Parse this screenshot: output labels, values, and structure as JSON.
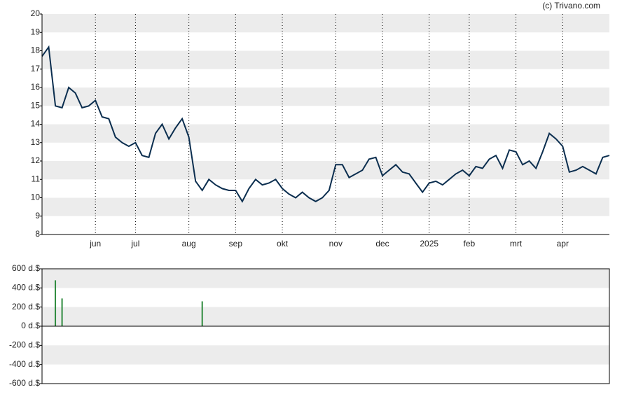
{
  "credit": "(c) Trivano.com",
  "chart_data": [
    {
      "type": "line",
      "color": "#0b2e4f",
      "grid": true,
      "ylim": [
        8,
        20
      ],
      "yticks": [
        8,
        9,
        10,
        11,
        12,
        13,
        14,
        15,
        16,
        17,
        18,
        19,
        20
      ],
      "categories": [
        null,
        null,
        null,
        null,
        null,
        null,
        null,
        null,
        "jun",
        null,
        null,
        null,
        null,
        null,
        "jul",
        null,
        null,
        null,
        null,
        null,
        null,
        null,
        "aug",
        null,
        null,
        null,
        null,
        null,
        null,
        "sep",
        null,
        null,
        null,
        null,
        null,
        null,
        "okt",
        null,
        null,
        null,
        null,
        null,
        null,
        null,
        "nov",
        null,
        null,
        null,
        null,
        null,
        null,
        "dec",
        null,
        null,
        null,
        null,
        null,
        null,
        "2025",
        null,
        null,
        null,
        null,
        null,
        "feb",
        null,
        null,
        null,
        null,
        null,
        null,
        "mrt",
        null,
        null,
        null,
        null,
        null,
        null,
        "apr",
        null,
        null,
        null,
        null,
        null,
        null,
        null
      ],
      "values": [
        17.7,
        18.2,
        15.0,
        14.9,
        16.0,
        15.7,
        14.9,
        15.0,
        15.3,
        14.4,
        14.3,
        13.3,
        13.0,
        12.8,
        13.0,
        12.3,
        12.2,
        13.5,
        14.0,
        13.2,
        13.8,
        14.3,
        13.3,
        10.9,
        10.4,
        11.0,
        10.7,
        10.5,
        10.4,
        10.4,
        9.8,
        10.5,
        11.0,
        10.7,
        10.8,
        11.0,
        10.5,
        10.2,
        10.0,
        10.3,
        10.0,
        9.8,
        10.0,
        10.4,
        11.8,
        11.8,
        11.1,
        11.3,
        11.5,
        12.1,
        12.2,
        11.2,
        11.5,
        11.8,
        11.4,
        11.3,
        10.8,
        10.3,
        10.8,
        10.9,
        10.7,
        11.0,
        11.3,
        11.5,
        11.2,
        11.7,
        11.6,
        12.1,
        12.3,
        11.6,
        12.6,
        12.5,
        11.8,
        12.0,
        11.6,
        12.5,
        13.5,
        13.2,
        12.8,
        11.4,
        11.5,
        11.7,
        11.5,
        11.3,
        12.2,
        12.3
      ]
    },
    {
      "type": "bar",
      "color": "#2e8b3e",
      "grid": true,
      "ylim": [
        -600,
        600
      ],
      "yticks": [
        {
          "value": -600,
          "label": "-600 d.$"
        },
        {
          "value": -400,
          "label": "-400 d.$"
        },
        {
          "value": -200,
          "label": "-200 d.$"
        },
        {
          "value": 0,
          "label": "0 d.$"
        },
        {
          "value": 200,
          "label": "200 d.$"
        },
        {
          "value": 400,
          "label": "400 d.$"
        },
        {
          "value": 600,
          "label": "600 d.$"
        }
      ],
      "values": [
        null,
        null,
        480,
        290,
        null,
        null,
        null,
        null,
        null,
        null,
        null,
        null,
        null,
        null,
        null,
        null,
        null,
        null,
        null,
        null,
        null,
        null,
        null,
        null,
        260,
        null,
        null,
        null,
        null,
        null,
        null,
        null,
        null,
        null,
        null,
        null,
        null,
        null,
        null,
        null,
        null,
        null,
        null,
        null,
        null,
        null,
        null,
        null,
        null,
        null,
        null,
        null,
        null,
        null,
        null,
        null,
        null,
        null,
        null,
        null,
        null,
        null,
        null,
        null,
        null,
        null,
        null,
        null,
        null,
        null,
        null,
        null,
        null,
        null,
        null,
        null,
        null,
        null,
        null,
        null,
        null,
        null,
        null,
        null,
        null,
        null
      ]
    }
  ]
}
